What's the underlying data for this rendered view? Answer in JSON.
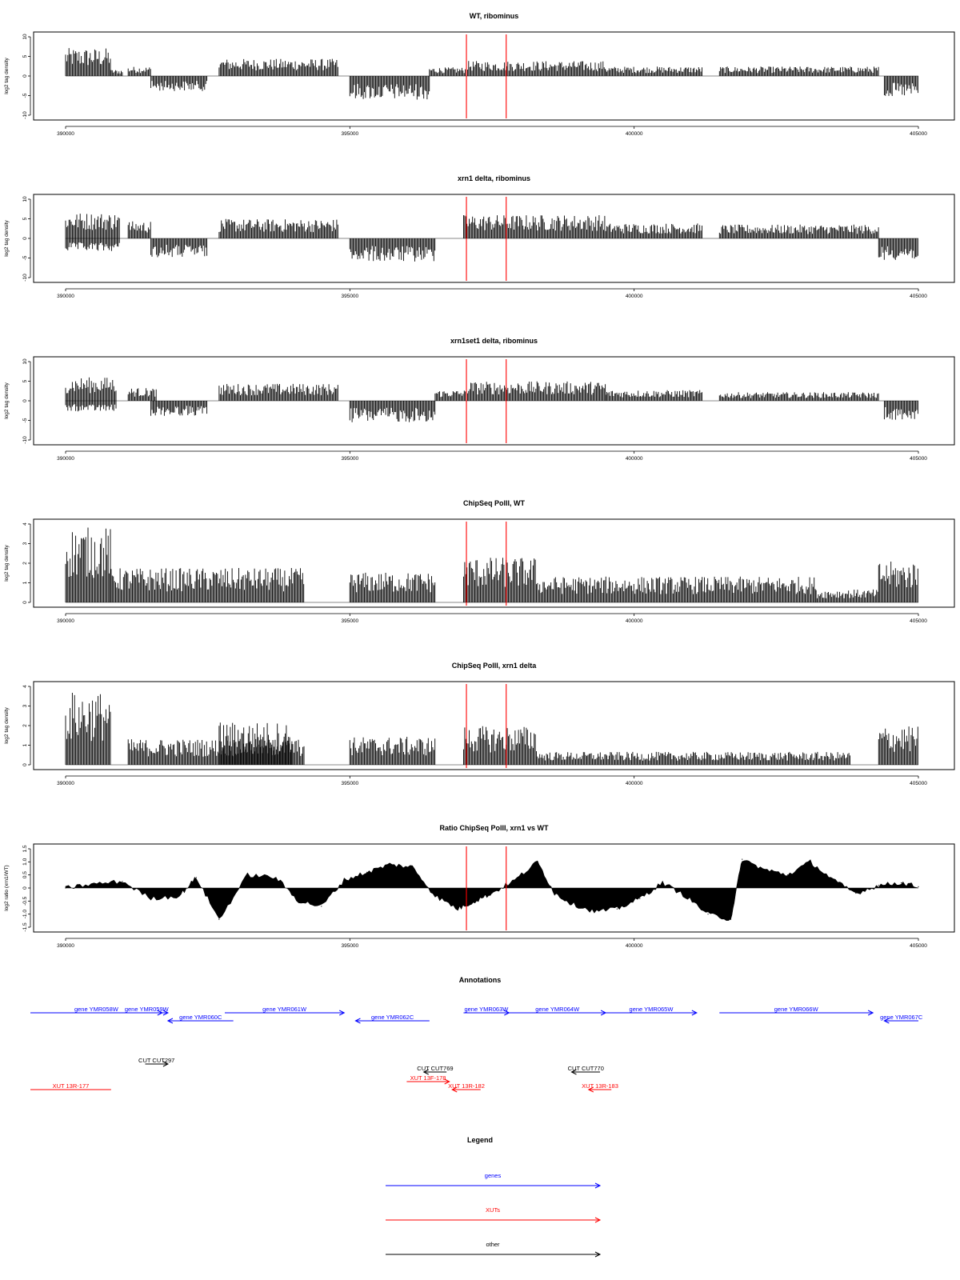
{
  "figure": {
    "colors": {
      "trace": "#000000",
      "marker": "#ff0000",
      "gene": "#0000ff",
      "xut": "#ff0000",
      "other": "#000000",
      "frame": "#000000"
    },
    "x_axis_ticks": [
      "390000",
      "395000",
      "400000",
      "405000"
    ]
  },
  "chart_data": [
    {
      "type": "bar",
      "title": "WT, ribominus",
      "ylabel": "log2 tag density",
      "xlim": [
        390000,
        405000
      ],
      "ylim": [
        -10,
        10
      ],
      "yticks": [
        "10",
        "5",
        "0",
        "-5",
        "-10"
      ],
      "markers": [
        397050,
        397750
      ],
      "segments": [
        {
          "x": [
            390000,
            390800
          ],
          "y": 6.5
        },
        {
          "x": [
            390800,
            391000
          ],
          "y": 1.5
        },
        {
          "x": [
            391100,
            391500
          ],
          "y": 2.2
        },
        {
          "x": [
            391500,
            392500
          ],
          "y": -3.5
        },
        {
          "x": [
            392700,
            394800
          ],
          "y": 4.0
        },
        {
          "x": [
            395000,
            396400
          ],
          "y": -5.5
        },
        {
          "x": [
            396400,
            397050
          ],
          "y": 2.0
        },
        {
          "x": [
            397050,
            399500
          ],
          "y": 3.5
        },
        {
          "x": [
            399500,
            401200
          ],
          "y": 2.2
        },
        {
          "x": [
            401500,
            404300
          ],
          "y": 2.2
        },
        {
          "x": [
            404400,
            405000
          ],
          "y": -5.0
        }
      ]
    },
    {
      "type": "bar",
      "title": "xrn1 delta, ribominus",
      "ylabel": "log2 tag density",
      "xlim": [
        390000,
        405000
      ],
      "ylim": [
        -10,
        10
      ],
      "yticks": [
        "10",
        "5",
        "0",
        "-5",
        "-10"
      ],
      "markers": [
        397050,
        397750
      ],
      "segments": [
        {
          "x": [
            390000,
            390950
          ],
          "y": 6.0
        },
        {
          "x": [
            390000,
            390950
          ],
          "y": -3.0
        },
        {
          "x": [
            391100,
            391500
          ],
          "y": 4.0
        },
        {
          "x": [
            391500,
            392500
          ],
          "y": -4.5
        },
        {
          "x": [
            392700,
            394800
          ],
          "y": 4.5
        },
        {
          "x": [
            395000,
            396500
          ],
          "y": -5.5
        },
        {
          "x": [
            397000,
            399500
          ],
          "y": 5.5
        },
        {
          "x": [
            399500,
            401200
          ],
          "y": 3.5
        },
        {
          "x": [
            401500,
            404300
          ],
          "y": 3.2
        },
        {
          "x": [
            404300,
            405000
          ],
          "y": -5.0
        }
      ]
    },
    {
      "type": "bar",
      "title": "xrn1set1 delta, ribominus",
      "ylabel": "log2 tag density",
      "xlim": [
        390000,
        405000
      ],
      "ylim": [
        -10,
        10
      ],
      "yticks": [
        "10",
        "5",
        "0",
        "-5",
        "-10"
      ],
      "markers": [
        397050,
        397750
      ],
      "segments": [
        {
          "x": [
            390000,
            390900
          ],
          "y": 5.5
        },
        {
          "x": [
            390000,
            390900
          ],
          "y": -2.5
        },
        {
          "x": [
            391100,
            391600
          ],
          "y": 3.0
        },
        {
          "x": [
            391500,
            392500
          ],
          "y": -3.5
        },
        {
          "x": [
            392700,
            394800
          ],
          "y": 4.0
        },
        {
          "x": [
            395000,
            396500
          ],
          "y": -5.0
        },
        {
          "x": [
            396500,
            397050
          ],
          "y": 2.5
        },
        {
          "x": [
            397050,
            399500
          ],
          "y": 4.5
        },
        {
          "x": [
            399500,
            401200
          ],
          "y": 2.5
        },
        {
          "x": [
            401500,
            404300
          ],
          "y": 2.0
        },
        {
          "x": [
            404400,
            405000
          ],
          "y": -4.5
        }
      ]
    },
    {
      "type": "bar",
      "title": "ChipSeq PolII, WT",
      "ylabel": "log2 tag density",
      "xlim": [
        390000,
        405000
      ],
      "ylim": [
        0,
        4
      ],
      "yticks": [
        "4",
        "3",
        "2",
        "1",
        "0"
      ],
      "markers": [
        397050,
        397750
      ],
      "segments": [
        {
          "x": [
            390000,
            390800
          ],
          "y": 3.5
        },
        {
          "x": [
            390800,
            394200
          ],
          "y": 1.6
        },
        {
          "x": [
            395000,
            396500
          ],
          "y": 1.4
        },
        {
          "x": [
            397000,
            398300
          ],
          "y": 2.1
        },
        {
          "x": [
            398300,
            403200
          ],
          "y": 1.2
        },
        {
          "x": [
            403200,
            404300
          ],
          "y": 0.6
        },
        {
          "x": [
            404300,
            405000
          ],
          "y": 1.9
        }
      ]
    },
    {
      "type": "bar",
      "title": "ChipSeq PolII, xrn1 delta",
      "ylabel": "log2 tag density",
      "xlim": [
        390000,
        405000
      ],
      "ylim": [
        0,
        4
      ],
      "yticks": [
        "4",
        "3",
        "2",
        "1",
        "0"
      ],
      "markers": [
        397050,
        397750
      ],
      "segments": [
        {
          "x": [
            390000,
            390800
          ],
          "y": 3.4
        },
        {
          "x": [
            391100,
            394200
          ],
          "y": 1.2
        },
        {
          "x": [
            392700,
            394000
          ],
          "y": 2.0
        },
        {
          "x": [
            395000,
            396500
          ],
          "y": 1.3
        },
        {
          "x": [
            397000,
            398300
          ],
          "y": 1.8
        },
        {
          "x": [
            398300,
            403800
          ],
          "y": 0.6
        },
        {
          "x": [
            404300,
            405000
          ],
          "y": 1.8
        }
      ]
    },
    {
      "type": "area",
      "title": "Ratio ChipSeq PolII, xrn1 vs WT",
      "ylabel": "log2 ratio (xrn1/WT)",
      "xlim": [
        390000,
        405000
      ],
      "ylim": [
        -1.5,
        1.5
      ],
      "yticks": [
        "1.5",
        "1.0",
        "0.5",
        "0",
        "-0.5",
        "-1.0",
        "-1.5"
      ],
      "markers": [
        397050,
        397750
      ],
      "x": [
        390000,
        390500,
        391000,
        391500,
        392000,
        392300,
        392700,
        393200,
        393700,
        394100,
        394500,
        394900,
        395300,
        395700,
        396100,
        396500,
        396900,
        397200,
        397500,
        397900,
        398300,
        398600,
        398900,
        399300,
        399700,
        400100,
        400500,
        400900,
        401300,
        401700,
        401900,
        402300,
        402700,
        403100,
        403500,
        403900,
        404300,
        404700,
        405000
      ],
      "y": [
        0.0,
        0.15,
        0.25,
        -0.4,
        -0.3,
        0.4,
        -1.2,
        0.5,
        0.4,
        -0.5,
        -0.7,
        0.3,
        0.6,
        0.9,
        0.8,
        -0.3,
        -0.8,
        -0.5,
        -0.2,
        0.3,
        1.0,
        -0.2,
        -0.6,
        -0.9,
        -0.8,
        -0.4,
        0.2,
        -0.3,
        -1.0,
        -1.2,
        1.1,
        0.7,
        0.5,
        1.0,
        0.3,
        -0.2,
        0.1,
        0.2,
        0.05
      ]
    }
  ],
  "annotations": {
    "title": "Annotations",
    "features": [
      {
        "label": "gene YMR058W",
        "type": "gene",
        "dir": "right",
        "start": 389300,
        "end": 391700
      },
      {
        "label": "gene YMR059W",
        "type": "gene",
        "dir": "right",
        "start": 391050,
        "end": 391800
      },
      {
        "label": "gene YMR060C",
        "type": "gene",
        "dir": "left",
        "start": 391800,
        "end": 392950
      },
      {
        "label": "gene YMR061W",
        "type": "gene",
        "dir": "right",
        "start": 392800,
        "end": 394900
      },
      {
        "label": "gene YMR062C",
        "type": "gene",
        "dir": "left",
        "start": 395100,
        "end": 396400
      },
      {
        "label": "gene YMR063W",
        "type": "gene",
        "dir": "right",
        "start": 397000,
        "end": 397800
      },
      {
        "label": "gene YMR064W",
        "type": "gene",
        "dir": "right",
        "start": 397800,
        "end": 399500
      },
      {
        "label": "gene YMR065W",
        "type": "gene",
        "dir": "right",
        "start": 399500,
        "end": 401100
      },
      {
        "label": "gene YMR066W",
        "type": "gene",
        "dir": "right",
        "start": 401500,
        "end": 404200
      },
      {
        "label": "gene YMR067C",
        "type": "gene",
        "dir": "left",
        "start": 404400,
        "end": 405000
      },
      {
        "label": "CUT CUT297",
        "type": "other",
        "dir": "right",
        "start": 391400,
        "end": 391800
      },
      {
        "label": "CUT CUT769",
        "type": "other",
        "dir": "left",
        "start": 396300,
        "end": 396700
      },
      {
        "label": "CUT CUT770",
        "type": "other",
        "dir": "left",
        "start": 398900,
        "end": 399400
      },
      {
        "label": "XUT 13R-177",
        "type": "xut",
        "dir": "none",
        "start": 389300,
        "end": 390800
      },
      {
        "label": "XUT 13F-178",
        "type": "xut",
        "dir": "right",
        "start": 396000,
        "end": 396750
      },
      {
        "label": "XUT 13R-182",
        "type": "xut",
        "dir": "left",
        "start": 396800,
        "end": 397300
      },
      {
        "label": "XUT 13R-183",
        "type": "xut",
        "dir": "left",
        "start": 399200,
        "end": 399600
      }
    ]
  },
  "legend": {
    "title": "Legend",
    "items": [
      {
        "label": "genes",
        "type": "gene"
      },
      {
        "label": "XUTs",
        "type": "xut"
      },
      {
        "label": "other",
        "type": "other"
      }
    ]
  }
}
